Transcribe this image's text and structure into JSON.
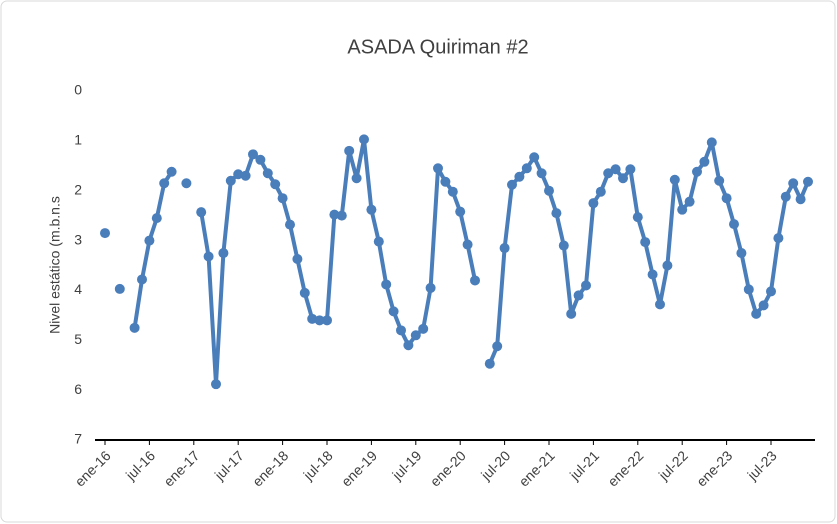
{
  "chart_data": {
    "type": "line",
    "title": "ASADA Quiriman #2",
    "y_label": "Nivel estático (m.b.n.s",
    "categories": [
      "ene-16",
      null,
      null,
      null,
      null,
      null,
      "jul-16",
      null,
      null,
      null,
      null,
      null,
      "ene-17",
      null,
      null,
      null,
      null,
      null,
      "jul-17",
      null,
      null,
      null,
      null,
      null,
      "ene-18",
      null,
      null,
      null,
      null,
      null,
      "jul-18",
      null,
      null,
      null,
      null,
      null,
      "ene-19",
      null,
      null,
      null,
      null,
      null,
      "jul-19",
      null,
      null,
      null,
      null,
      null,
      "ene-20",
      null,
      null,
      null,
      null,
      null,
      "jul-20",
      null,
      null,
      null,
      null,
      null,
      "ene-21",
      null,
      null,
      null,
      null,
      null,
      "jul-21",
      null,
      null,
      null,
      null,
      null,
      "ene-22",
      null,
      null,
      null,
      null,
      null,
      "jul-22",
      null,
      null,
      null,
      null,
      null,
      "ene-23",
      null,
      null,
      null,
      null,
      null,
      "jul-23",
      null,
      null,
      null,
      null,
      null
    ],
    "series": [
      {
        "color": "#4a7ebb",
        "values": [
          2.85,
          null,
          3.97,
          null,
          4.75,
          3.78,
          3.0,
          2.55,
          1.85,
          1.62,
          null,
          1.85,
          null,
          2.43,
          3.32,
          5.88,
          3.25,
          1.8,
          1.67,
          1.7,
          1.27,
          1.38,
          1.65,
          1.87,
          2.15,
          2.68,
          3.37,
          4.05,
          4.57,
          4.6,
          4.6,
          2.48,
          2.5,
          1.2,
          1.75,
          0.97,
          2.38,
          3.02,
          3.88,
          4.42,
          4.8,
          5.1,
          4.9,
          4.77,
          3.95,
          1.55,
          1.82,
          2.02,
          2.42,
          3.08,
          3.8,
          null,
          5.47,
          5.12,
          3.15,
          1.88,
          1.72,
          1.55,
          1.33,
          1.65,
          2.0,
          2.45,
          3.1,
          4.47,
          4.1,
          3.9,
          2.25,
          2.02,
          1.65,
          1.57,
          1.75,
          1.57,
          2.53,
          3.03,
          3.68,
          4.28,
          3.5,
          1.78,
          2.38,
          2.22,
          1.62,
          1.42,
          1.03,
          1.8,
          2.15,
          2.67,
          3.25,
          3.98,
          4.47,
          4.3,
          4.02,
          2.95,
          2.12,
          1.85,
          2.17,
          1.82
        ]
      }
    ],
    "ylim": [
      0,
      7
    ],
    "yticks": [
      0,
      1,
      2,
      3,
      4,
      5,
      6,
      7
    ],
    "y_inverted": true,
    "grid": false,
    "markers": true
  }
}
